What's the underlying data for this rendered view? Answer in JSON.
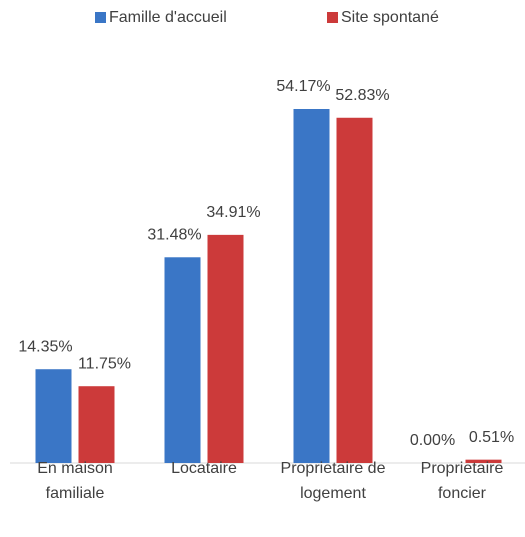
{
  "chart_data": {
    "type": "bar",
    "categories": [
      "En maison familiale",
      "Locataire",
      "Proprietaire de logement",
      "Proprietaire foncier"
    ],
    "series": [
      {
        "name": "Famille d'accueil",
        "color": "#3a76c6",
        "values": [
          14.35,
          31.48,
          54.17,
          0.0
        ],
        "value_labels": [
          "14.35%",
          "31.48%",
          "54.17%",
          "0.00%"
        ]
      },
      {
        "name": "Site spontané",
        "color": "#cc3a3a",
        "values": [
          11.75,
          34.91,
          52.83,
          0.51
        ],
        "value_labels": [
          "11.75%",
          "34.91%",
          "52.83%",
          "0.51%"
        ]
      }
    ],
    "legend": "top"
  }
}
